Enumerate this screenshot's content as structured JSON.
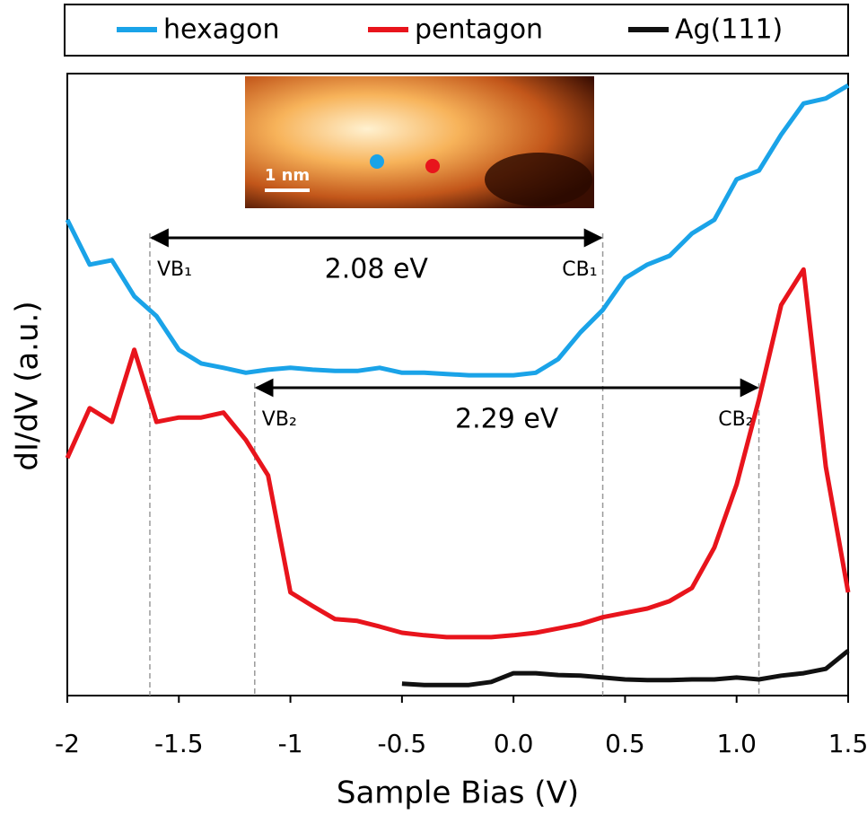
{
  "chart_data": {
    "type": "line",
    "xlabel": "Sample Bias (V)",
    "ylabel": "dI/dV (a.u.)",
    "x": [
      -2.0,
      -1.9,
      -1.8,
      -1.7,
      -1.6,
      -1.5,
      -1.4,
      -1.3,
      -1.2,
      -1.1,
      -1.0,
      -0.9,
      -0.8,
      -0.7,
      -0.6,
      -0.5,
      -0.4,
      -0.3,
      -0.2,
      -0.1,
      0.0,
      0.1,
      0.2,
      0.3,
      0.4,
      0.5,
      0.6,
      0.7,
      0.8,
      0.9,
      1.0,
      1.1,
      1.2,
      1.3,
      1.4,
      1.5
    ],
    "series": [
      {
        "name": "hexagon",
        "color": "#1aa3e8",
        "values": [
          76.5,
          69.3,
          70.0,
          64.2,
          61.0,
          55.6,
          53.4,
          52.7,
          51.9,
          52.4,
          52.7,
          52.4,
          52.2,
          52.2,
          52.7,
          51.9,
          51.9,
          51.7,
          51.5,
          51.5,
          51.5,
          51.9,
          54.1,
          58.4,
          62.0,
          67.1,
          69.3,
          70.7,
          74.3,
          76.5,
          83.0,
          84.4,
          90.2,
          95.2,
          96.0,
          98.1
        ]
      },
      {
        "name": "pentagon",
        "color": "#e8141c",
        "values": [
          38.2,
          46.2,
          44.0,
          55.6,
          44.0,
          44.7,
          44.7,
          45.5,
          41.1,
          35.4,
          16.6,
          14.4,
          12.3,
          12.0,
          11.1,
          10.1,
          9.7,
          9.4,
          9.4,
          9.4,
          9.7,
          10.1,
          10.8,
          11.5,
          12.6,
          13.3,
          14.0,
          15.2,
          17.3,
          23.8,
          33.9,
          47.6,
          62.8,
          68.5,
          36.8,
          16.6
        ]
      },
      {
        "name": "Ag(111)",
        "color": "#111111",
        "values": [
          null,
          null,
          null,
          null,
          null,
          null,
          null,
          null,
          null,
          null,
          null,
          null,
          null,
          null,
          null,
          1.9,
          1.7,
          1.7,
          1.7,
          2.2,
          3.6,
          3.6,
          3.3,
          3.2,
          2.9,
          2.6,
          2.5,
          2.5,
          2.6,
          2.6,
          2.9,
          2.6,
          3.2,
          3.6,
          4.3,
          7.2
        ]
      }
    ],
    "xlim": [
      -2,
      1.5
    ],
    "ylim": [
      0,
      100
    ],
    "xticks": [
      -2,
      -1.5,
      -1,
      -0.5,
      {
        "value": 0,
        "label": "0.0"
      },
      0.5,
      {
        "value": 1,
        "label": "1.0"
      },
      1.5
    ],
    "legend_position": "top",
    "gaps": [
      {
        "label": "2.08 eV",
        "from": -1.63,
        "to": 0.4,
        "y": 73.6,
        "start_label": "VB₁",
        "end_label": "CB₁"
      },
      {
        "label": "2.29 eV",
        "from": -1.16,
        "to": 1.1,
        "y": 49.5,
        "start_label": "VB₂",
        "end_label": "CB₂"
      }
    ],
    "inset": {
      "scale_label": "1 nm"
    }
  }
}
